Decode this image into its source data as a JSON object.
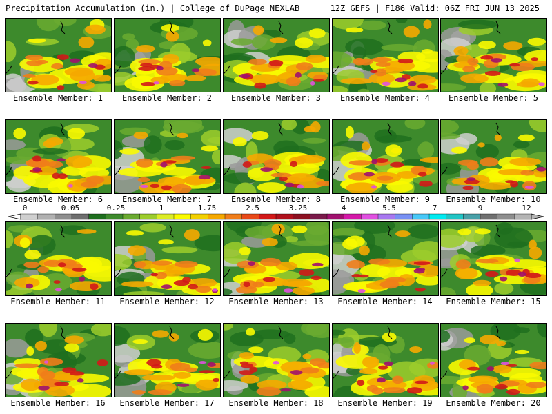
{
  "header": {
    "left": "Precipitation Accumulation (in.) | College of DuPage NEXLAB",
    "right": "12Z GEFS | F186 Valid: 06Z FRI JUN 13 2025"
  },
  "colorbar": {
    "labels": [
      "0",
      "0.05",
      "0.25",
      "1",
      "1.75",
      "2.5",
      "3.25",
      "4",
      "5.5",
      "7",
      "9",
      "12"
    ],
    "colors": [
      "#cfcfcf",
      "#b0b0b0",
      "#8e8e8e",
      "#6e6e6e",
      "#1e6e1e",
      "#3d8a2c",
      "#6aaa30",
      "#9ccc2c",
      "#dcec26",
      "#fafa00",
      "#f2d000",
      "#f5a800",
      "#f07d1a",
      "#e84818",
      "#d21818",
      "#b0101c",
      "#8c1020",
      "#7a1a4a",
      "#a0106e",
      "#d418a8",
      "#e050e0",
      "#a878f0",
      "#7890f4",
      "#48c8f8",
      "#00eaf0",
      "#20c4c4",
      "#48a0a8",
      "#707070",
      "#8e8e8e",
      "#b4b4b4"
    ]
  },
  "panels": [
    {
      "label": "Ensemble Member: 1"
    },
    {
      "label": "Ensemble Member: 2"
    },
    {
      "label": "Ensemble Member: 3"
    },
    {
      "label": "Ensemble Member: 4"
    },
    {
      "label": "Ensemble Member: 5"
    },
    {
      "label": "Ensemble Member: 6"
    },
    {
      "label": "Ensemble Member: 7"
    },
    {
      "label": "Ensemble Member: 8"
    },
    {
      "label": "Ensemble Member: 9"
    },
    {
      "label": "Ensemble Member: 10"
    },
    {
      "label": "Ensemble Member: 11"
    },
    {
      "label": "Ensemble Member: 12"
    },
    {
      "label": "Ensemble Member: 13"
    },
    {
      "label": "Ensemble Member: 14"
    },
    {
      "label": "Ensemble Member: 15"
    },
    {
      "label": "Ensemble Member: 16"
    },
    {
      "label": "Ensemble Member: 17"
    },
    {
      "label": "Ensemble Member: 18"
    },
    {
      "label": "Ensemble Member: 19"
    },
    {
      "label": "Ensemble Member: 20"
    }
  ]
}
